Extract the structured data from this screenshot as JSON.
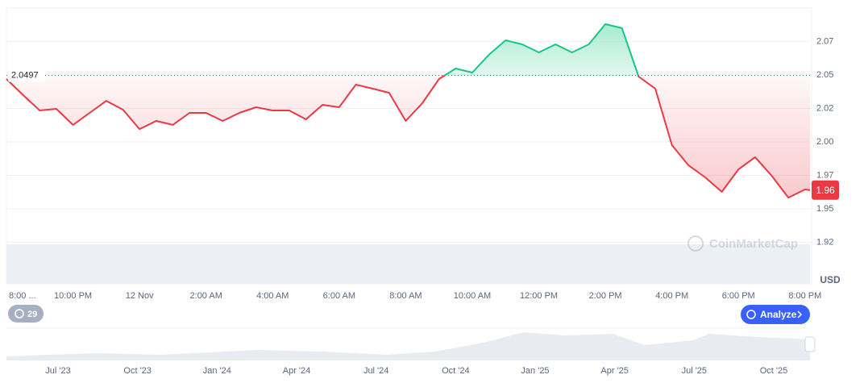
{
  "chart_data": {
    "type": "line",
    "x": [
      0,
      0.5,
      1,
      1.5,
      2,
      2.5,
      3,
      3.5,
      4,
      4.5,
      5,
      5.5,
      6,
      6.5,
      7,
      7.5,
      8,
      8.5,
      9,
      9.5,
      10,
      10.5,
      11,
      11.5,
      12,
      12.5,
      13,
      13.5,
      14,
      14.5,
      15,
      15.5,
      16,
      16.5,
      17,
      17.5,
      18,
      18.5,
      19,
      19.5,
      20,
      20.5,
      21,
      21.5,
      22,
      22.5,
      23,
      23.5,
      24,
      24.15
    ],
    "values": [
      2.047,
      2.035,
      2.0235,
      2.0247,
      2.0127,
      2.0217,
      2.0307,
      2.0241,
      2.0096,
      2.0157,
      2.0127,
      2.0217,
      2.0217,
      2.0157,
      2.0217,
      2.0259,
      2.0235,
      2.0235,
      2.0169,
      2.0277,
      2.0259,
      2.0428,
      2.0398,
      2.0367,
      2.0157,
      2.0289,
      2.047,
      2.0548,
      2.0518,
      2.0651,
      2.0759,
      2.0729,
      2.0669,
      2.0729,
      2.0669,
      2.0729,
      2.088,
      2.085,
      2.0488,
      2.0398,
      1.9976,
      1.9825,
      1.9735,
      1.9627,
      1.9795,
      1.9886,
      1.9747,
      1.9584,
      1.9645,
      1.964
    ],
    "baseline": 2.0497,
    "last_value_label": "1.96",
    "up_color": "#16c784",
    "down_color": "#ea3943",
    "xlim": [
      0,
      24.15
    ],
    "xticks": [
      {
        "value": 0,
        "label": "8:00 ..."
      },
      {
        "value": 2,
        "label": "10:00 PM"
      },
      {
        "value": 4,
        "label": "12 Nov"
      },
      {
        "value": 6,
        "label": "2:00 AM"
      },
      {
        "value": 8,
        "label": "4:00 AM"
      },
      {
        "value": 10,
        "label": "6:00 AM"
      },
      {
        "value": 12,
        "label": "8:00 AM"
      },
      {
        "value": 14,
        "label": "10:00 AM"
      },
      {
        "value": 16,
        "label": "12:00 PM"
      },
      {
        "value": 18,
        "label": "2:00 PM"
      },
      {
        "value": 20,
        "label": "4:00 PM"
      },
      {
        "value": 22,
        "label": "6:00 PM"
      },
      {
        "value": 24,
        "label": "8:00 PM"
      }
    ],
    "ylim": [
      1.894,
      2.1
    ],
    "yticks": [
      {
        "value": 1.925,
        "label": "1.92"
      },
      1.95,
      {
        "value": 1.975,
        "label": "1.97"
      },
      {
        "value": 2,
        "label": "2.00"
      },
      {
        "value": 2.025,
        "label": "2.02"
      },
      2.05,
      {
        "value": 2.075,
        "label": "2.07"
      }
    ],
    "y_unit": "USD",
    "grid": true
  },
  "ui": {
    "watermark": "CoinMarketCap",
    "history_count": 29,
    "analyze": "Analyze"
  },
  "navigator": {
    "labels": [
      "Jul '23",
      "Oct '23",
      "Jan '24",
      "Apr '24",
      "Jul '24",
      "Oct '24",
      "Jan '25",
      "Apr '25",
      "Jul '25",
      "Oct '25"
    ]
  }
}
